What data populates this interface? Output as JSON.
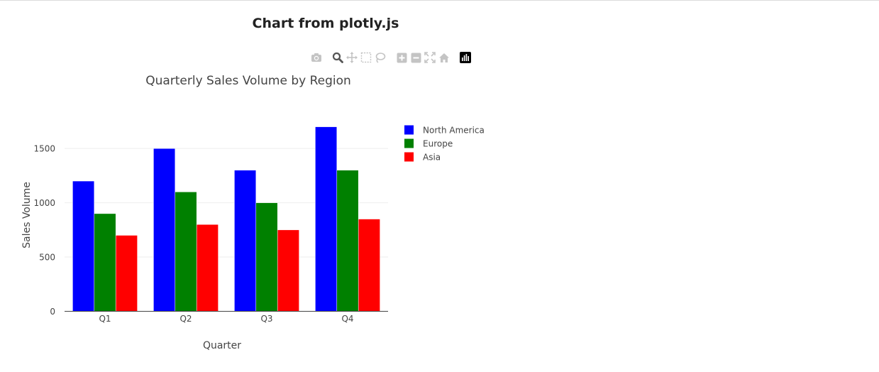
{
  "page": {
    "title": "Chart from plotly.js"
  },
  "modebar": {
    "buttons": [
      {
        "name": "camera-icon",
        "group": 0
      },
      {
        "name": "zoom-icon",
        "group": 1,
        "active": true
      },
      {
        "name": "pan-icon",
        "group": 1
      },
      {
        "name": "box-select-icon",
        "group": 1
      },
      {
        "name": "lasso-select-icon",
        "group": 1
      },
      {
        "name": "zoom-in-icon",
        "group": 2
      },
      {
        "name": "zoom-out-icon",
        "group": 2
      },
      {
        "name": "autoscale-icon",
        "group": 2
      },
      {
        "name": "reset-axes-icon",
        "group": 2
      },
      {
        "name": "plotly-logo-icon",
        "group": 3
      }
    ]
  },
  "chart_data": {
    "type": "bar",
    "title": "Quarterly Sales Volume by Region",
    "xlabel": "Quarter",
    "ylabel": "Sales Volume",
    "categories": [
      "Q1",
      "Q2",
      "Q3",
      "Q4"
    ],
    "series": [
      {
        "name": "North America",
        "color": "#0000ff",
        "values": [
          1200,
          1500,
          1300,
          1700
        ]
      },
      {
        "name": "Europe",
        "color": "#008000",
        "values": [
          900,
          1100,
          1000,
          1300
        ]
      },
      {
        "name": "Asia",
        "color": "#ff0000",
        "values": [
          700,
          800,
          750,
          850
        ]
      }
    ],
    "ylim": [
      0,
      1789
    ],
    "yticks": [
      0,
      500,
      1000,
      1500
    ],
    "ytick_labels": [
      "0",
      "500",
      "1000",
      "1500"
    ],
    "grid": true,
    "legend_position": "right"
  }
}
